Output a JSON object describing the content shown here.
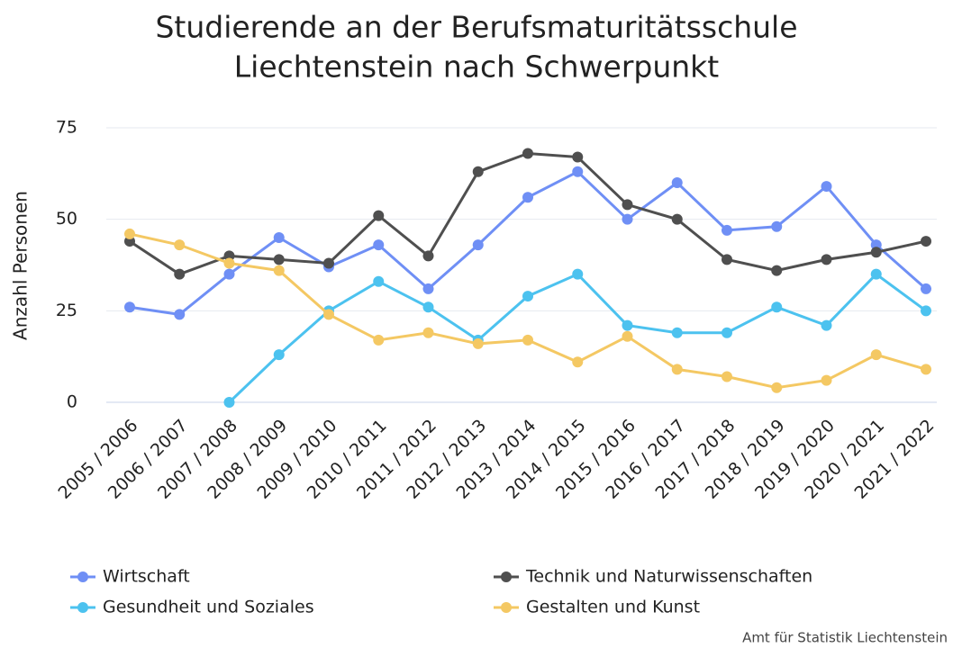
{
  "chart_data": {
    "type": "line",
    "title": [
      "Studierende an der Berufsmaturitätsschule",
      "Liechtenstein nach Schwerpunkt"
    ],
    "y_label": "Anzahl Personen",
    "source": "Amt für Statistik Liechtenstein",
    "categories": [
      "2005 / 2006",
      "2006 / 2007",
      "2007 / 2008",
      "2008 / 2009",
      "2009 / 2010",
      "2010 / 2011",
      "2011 / 2012",
      "2012 / 2013",
      "2013 / 2014",
      "2014 / 2015",
      "2015 / 2016",
      "2016 / 2017",
      "2017 / 2018",
      "2018 / 2019",
      "2019 / 2020",
      "2020 / 2021",
      "2021 / 2022"
    ],
    "series": [
      {
        "name": "Wirtschaft",
        "color": "#6f8ff5",
        "values": [
          26,
          24,
          35,
          45,
          37,
          43,
          31,
          43,
          56,
          63,
          50,
          60,
          47,
          48,
          59,
          43,
          31
        ]
      },
      {
        "name": "Technik und Naturwissenschaften",
        "color": "#4f4f4f",
        "values": [
          44,
          35,
          40,
          39,
          38,
          51,
          40,
          63,
          68,
          67,
          54,
          50,
          39,
          36,
          39,
          41,
          44
        ]
      },
      {
        "name": "Gesundheit und Soziales",
        "color": "#4cc2ef",
        "values": [
          null,
          null,
          0,
          13,
          25,
          33,
          26,
          17,
          29,
          35,
          21,
          19,
          19,
          26,
          21,
          35,
          25
        ]
      },
      {
        "name": "Gestalten und Kunst",
        "color": "#f4c863",
        "values": [
          46,
          43,
          38,
          36,
          24,
          17,
          19,
          16,
          17,
          11,
          18,
          9,
          7,
          4,
          6,
          13,
          9
        ]
      }
    ],
    "ylim": [
      0,
      75
    ],
    "yticks": [
      0,
      25,
      50,
      75
    ],
    "grid": true
  }
}
